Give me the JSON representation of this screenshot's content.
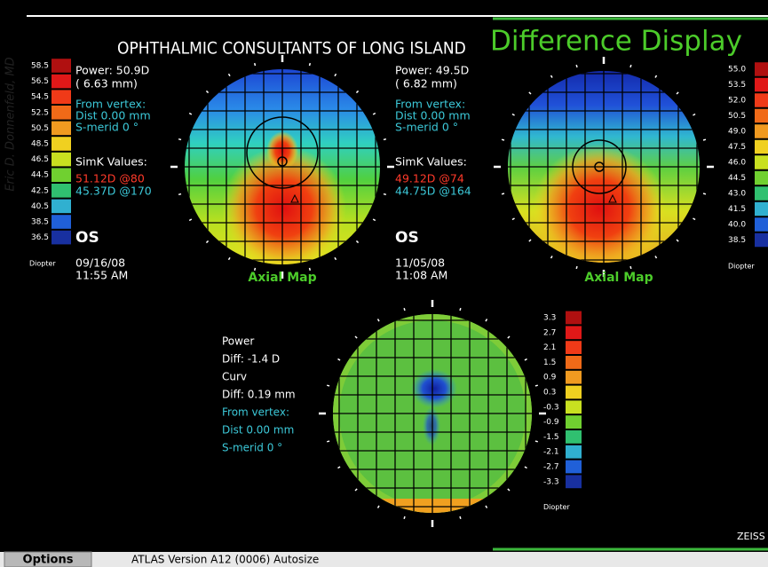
{
  "credit": "Eric D. Donnenfeld, MD",
  "header": {
    "institution": "OPHTHALMIC CONSULTANTS OF LONG ISLAND",
    "title": "Difference Display"
  },
  "scales": {
    "left": {
      "labels": [
        "58.5",
        "56.5",
        "54.5",
        "52.5",
        "50.5",
        "48.5",
        "46.5",
        "44.5",
        "42.5",
        "40.5",
        "38.5",
        "36.5"
      ],
      "unit": "Diopter"
    },
    "right": {
      "labels": [
        "55.0",
        "53.5",
        "52.0",
        "50.5",
        "49.0",
        "47.5",
        "46.0",
        "44.5",
        "43.0",
        "41.5",
        "40.0",
        "38.5"
      ],
      "unit": "Diopter"
    },
    "difference": {
      "labels": [
        "3.3",
        "2.7",
        "2.1",
        "1.5",
        "0.9",
        "0.3",
        "-0.3",
        "-0.9",
        "-1.5",
        "-2.1",
        "-2.7",
        "-3.3"
      ],
      "unit": "Diopter"
    }
  },
  "maps": [
    {
      "power": "Power:  50.9D",
      "radius": "(  6.63 mm)",
      "vertex_label": "From vertex:",
      "dist": "Dist  0.00 mm",
      "s_merid": "S-merid    0 °",
      "simk_label": "SimK Values:",
      "simk": [
        "51.12D @80",
        "45.37D @170"
      ],
      "eye": "OS",
      "date": "09/16/08",
      "time": "11:55 AM",
      "map_type": "Axial Map"
    },
    {
      "power": "Power:  49.5D",
      "radius": "(  6.82 mm)",
      "vertex_label": "From vertex:",
      "dist": "Dist  0.00 mm",
      "s_merid": "S-merid    0 °",
      "simk_label": "SimK Values:",
      "simk": [
        "49.12D @74",
        "44.75D @164"
      ],
      "eye": "OS",
      "date": "11/05/08",
      "time": "11:08 AM",
      "map_type": "Axial Map"
    }
  ],
  "difference": {
    "power_label": "Power",
    "power_diff": "Diff:  -1.4 D",
    "curv_label": "Curv",
    "curv_diff": "Diff:  0.19 mm",
    "vertex_label": "From vertex:",
    "dist": "Dist  0.00 mm",
    "s_merid": "S-merid     0 °"
  },
  "brand": "ZEISS",
  "footer": {
    "button": "Options",
    "version": "ATLAS  Version A12 (0006)  Autosize"
  }
}
